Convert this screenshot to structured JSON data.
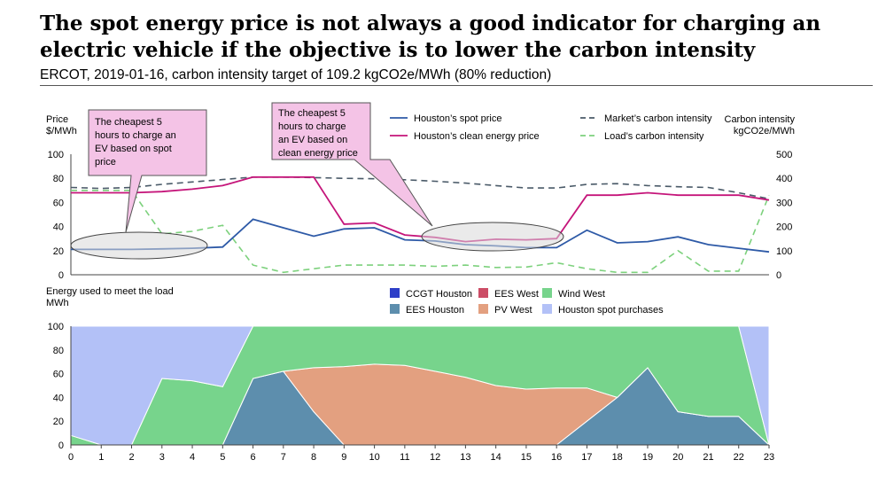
{
  "title": "The spot energy price is not always a good indicator for charging an electric vehicle if the objective is to lower the carbon intensity",
  "subtitle": "ERCOT, 2019-01-16, carbon intensity target of 109.2 kgCO2e/MWh (80% reduction)",
  "chart_data": [
    {
      "type": "line",
      "y_left_label": [
        "Price",
        "$/MWh"
      ],
      "y_right_label": [
        "Carbon intensity",
        "kgCO2e/MWh"
      ],
      "y_left_ticks": [
        "0",
        "20",
        "40",
        "60",
        "80",
        "100"
      ],
      "y_right_ticks": [
        "0",
        "100",
        "200",
        "300",
        "400",
        "500"
      ],
      "ylim_left": [
        0,
        100
      ],
      "ylim_right": [
        0,
        500
      ],
      "x": [
        0,
        1,
        2,
        3,
        4,
        5,
        6,
        7,
        8,
        9,
        10,
        11,
        12,
        13,
        14,
        15,
        16,
        17,
        18,
        19,
        20,
        21,
        22,
        23
      ],
      "legend_position": "top",
      "series": [
        {
          "name": "Houston’s spot price",
          "axis": "left",
          "color": "#2e5aa7",
          "dash": "solid",
          "values": [
            21,
            21,
            21,
            21.5,
            22,
            23,
            46,
            39,
            32,
            38,
            39,
            29,
            28,
            25,
            24,
            22.5,
            22.5,
            37,
            26.5,
            27.5,
            31.5,
            25,
            22,
            19
          ]
        },
        {
          "name": "Houston’s clean energy price",
          "axis": "left",
          "color": "#c5157a",
          "dash": "solid",
          "values": [
            68,
            68,
            68,
            69,
            71,
            74,
            81,
            81,
            81,
            42,
            43,
            33,
            31,
            27.5,
            29.5,
            29,
            30,
            66,
            66,
            68,
            66,
            66,
            66,
            62
          ]
        },
        {
          "name": "Market’s carbon intensity",
          "axis": "right",
          "color": "#4a5a68",
          "dash": "dashed",
          "values": [
            362,
            358,
            362,
            375,
            385,
            395,
            405,
            405,
            403,
            400,
            398,
            394,
            388,
            380,
            370,
            360,
            360,
            375,
            378,
            370,
            365,
            362,
            340,
            315
          ]
        },
        {
          "name": "Load’s carbon intensity",
          "axis": "right",
          "color": "#7dd17d",
          "dash": "dashed",
          "values": [
            350,
            350,
            350,
            170,
            180,
            205,
            40,
            10,
            25,
            40,
            40,
            40,
            35,
            40,
            30,
            32,
            50,
            25,
            10,
            10,
            100,
            15,
            15,
            330
          ]
        }
      ],
      "annotations": [
        {
          "lines": [
            "The cheapest 5",
            "hours to charge an",
            "EV based on spot",
            "price"
          ]
        },
        {
          "lines": [
            "The cheapest 5",
            "hours to charge",
            "an EV based on",
            "clean energy price"
          ]
        }
      ]
    },
    {
      "type": "area",
      "stacked": true,
      "y_label": [
        "Energy used to meet the load",
        "MWh"
      ],
      "y_ticks": [
        "0",
        "20",
        "40",
        "60",
        "80",
        "100"
      ],
      "x_ticks": [
        "0",
        "1",
        "2",
        "3",
        "4",
        "5",
        "6",
        "7",
        "8",
        "9",
        "10",
        "11",
        "12",
        "13",
        "14",
        "15",
        "16",
        "17",
        "18",
        "19",
        "20",
        "21",
        "22",
        "23"
      ],
      "ylim": [
        0,
        100
      ],
      "x": [
        0,
        1,
        2,
        3,
        4,
        5,
        6,
        7,
        8,
        9,
        10,
        11,
        12,
        13,
        14,
        15,
        16,
        17,
        18,
        19,
        20,
        21,
        22,
        23
      ],
      "legend_position": "top",
      "series": [
        {
          "name": "CCGT Houston",
          "color": "#2e3fc8",
          "values": [
            0,
            0,
            0,
            0,
            0,
            0,
            0,
            0,
            0,
            0,
            0,
            0,
            0,
            0,
            0,
            0,
            0,
            0,
            0,
            0,
            0,
            0,
            0,
            0
          ]
        },
        {
          "name": "EES Houston",
          "color": "#5d8ead",
          "values": [
            0,
            0,
            0,
            0,
            0,
            0,
            56,
            62,
            28,
            0,
            0,
            0,
            0,
            0,
            0,
            0,
            0,
            20,
            40,
            65,
            28,
            24,
            24,
            0
          ]
        },
        {
          "name": "EES West",
          "color": "#cc4d66",
          "values": [
            0,
            0,
            0,
            0,
            0,
            0,
            0,
            0,
            0,
            0,
            0,
            0,
            0,
            0,
            0,
            0,
            0,
            0,
            0,
            0,
            0,
            0,
            0,
            0
          ]
        },
        {
          "name": "PV West",
          "color": "#e3a080",
          "values": [
            0,
            0,
            0,
            0,
            0,
            0,
            0,
            0,
            37,
            66,
            68,
            67,
            62,
            57,
            50,
            47,
            48,
            28,
            0,
            0,
            0,
            0,
            0,
            0
          ]
        },
        {
          "name": "Wind West",
          "color": "#77d48c",
          "values": [
            8,
            0,
            0,
            56,
            54,
            49,
            44,
            38,
            35,
            34,
            32,
            33,
            38,
            43,
            50,
            53,
            52,
            52,
            60,
            35,
            72,
            76,
            76,
            0
          ]
        },
        {
          "name": "Houston spot purchases",
          "color": "#b3c1f7",
          "values": [
            92,
            100,
            100,
            44,
            46,
            51,
            0,
            0,
            0,
            0,
            0,
            0,
            0,
            0,
            0,
            0,
            0,
            0,
            0,
            0,
            0,
            0,
            0,
            100
          ]
        }
      ]
    }
  ]
}
